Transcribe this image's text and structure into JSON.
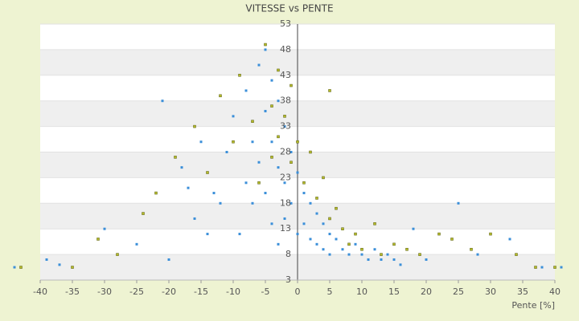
{
  "chart_data": {
    "type": "scatter",
    "title": "VITESSE vs PENTE",
    "x_label": "Pente [%]",
    "xlim": [
      -40,
      40
    ],
    "xticks": [
      -40,
      -35,
      -30,
      -25,
      -20,
      -15,
      -10,
      -5,
      0,
      5,
      10,
      15,
      20,
      25,
      30,
      35,
      40
    ],
    "ylim": [
      3,
      53
    ],
    "yticks": [
      3,
      8,
      13,
      18,
      23,
      28,
      33,
      38,
      43,
      48,
      53
    ],
    "grid": true,
    "series": [
      {
        "color": "#3b8fd9",
        "x": [
          -44,
          -39,
          -37,
          -30,
          -25,
          -21,
          -20,
          -18,
          -17,
          -16,
          -15,
          -14,
          -13,
          -12,
          -11,
          -10,
          -9,
          -8,
          -8,
          -7,
          -7,
          -6,
          -6,
          -5,
          -5,
          -5,
          -4,
          -4,
          -4,
          -3,
          -3,
          -3,
          -2,
          -2,
          -2,
          -1,
          -1,
          0,
          0,
          1,
          1,
          2,
          2,
          3,
          3,
          4,
          4,
          5,
          5,
          6,
          7,
          8,
          9,
          10,
          11,
          12,
          13,
          14,
          15,
          16,
          18,
          20,
          25,
          28,
          33,
          38,
          41
        ],
        "values": [
          5.5,
          7,
          6,
          13,
          10,
          38,
          7,
          25,
          21,
          15,
          30,
          12,
          20,
          18,
          28,
          35,
          12,
          22,
          40,
          30,
          18,
          45,
          26,
          36,
          20,
          48,
          42,
          30,
          14,
          38,
          25,
          10,
          33,
          22,
          15,
          28,
          18,
          24,
          12,
          20,
          14,
          18,
          11,
          16,
          10,
          14,
          9,
          12,
          8,
          11,
          9,
          8,
          10,
          8,
          7,
          9,
          7,
          8,
          7,
          6,
          13,
          7,
          18,
          8,
          11,
          5.5,
          5.5
        ]
      },
      {
        "color": "#b5bb2a",
        "x": [
          -43,
          -35,
          -31,
          -28,
          -24,
          -22,
          -19,
          -16,
          -14,
          -12,
          -10,
          -9,
          -7,
          -6,
          -5,
          -4,
          -4,
          -3,
          -3,
          -2,
          -1,
          -1,
          0,
          1,
          2,
          3,
          4,
          5,
          5,
          6,
          7,
          8,
          9,
          10,
          12,
          13,
          15,
          17,
          19,
          22,
          24,
          27,
          30,
          34,
          37,
          40
        ],
        "values": [
          5.5,
          5.5,
          11,
          8,
          16,
          20,
          27,
          33,
          24,
          39,
          30,
          43,
          34,
          22,
          49,
          37,
          27,
          44,
          31,
          35,
          41,
          26,
          30,
          22,
          28,
          19,
          23,
          15,
          40,
          17,
          13,
          10,
          12,
          9,
          14,
          8,
          10,
          9,
          8,
          12,
          11,
          9,
          12,
          8,
          5.5,
          5.5
        ]
      }
    ]
  }
}
